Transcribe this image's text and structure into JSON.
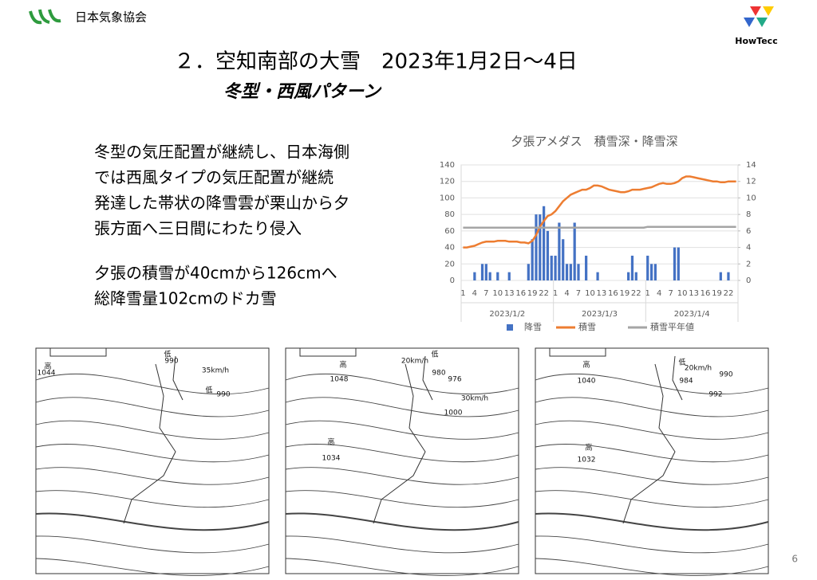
{
  "header": {
    "org": "日本気象協会",
    "logo_right": "HowTecc"
  },
  "title": "２．空知南部の大雪　2023年1月2日～4日",
  "subtitle": "冬型・西風パターン",
  "body": {
    "lines": [
      "冬型の気圧配置が継続し、日本海側",
      "では西風タイプの気圧配置が継続",
      "発達した帯状の降雪雲が栗山から夕",
      "張方面へ三日間にわたり侵入"
    ],
    "lines2": [
      "夕張の積雪が40cmから126cmへ",
      "総降雪量102cmのドカ雪"
    ]
  },
  "chart_data": {
    "type": "combo",
    "title": "夕張アメダス　積雪深・降雪深",
    "categories": [
      1,
      null,
      null,
      4,
      null,
      null,
      7,
      null,
      null,
      10,
      null,
      null,
      13,
      null,
      null,
      16,
      null,
      null,
      19,
      null,
      null,
      22,
      null,
      null,
      1,
      null,
      null,
      4,
      null,
      null,
      7,
      null,
      null,
      10,
      null,
      null,
      13,
      null,
      null,
      16,
      null,
      null,
      19,
      null,
      null,
      22,
      null,
      null,
      1,
      null,
      null,
      4,
      null,
      null,
      7,
      null,
      null,
      10,
      null,
      null,
      13,
      null,
      null,
      16,
      null,
      null,
      19,
      null,
      null,
      22,
      null,
      null
    ],
    "groups": [
      "2023/1/2",
      "2023/1/3",
      "2023/1/4"
    ],
    "ylim": [
      0,
      140
    ],
    "yticks": [
      0,
      20,
      40,
      60,
      80,
      100,
      120,
      140
    ],
    "y2lim": [
      0,
      14
    ],
    "y2ticks": [
      0,
      2,
      4,
      6,
      8,
      10,
      12,
      14
    ],
    "series": [
      {
        "name": "降雪",
        "kind": "bar",
        "axis": "y2",
        "color": "#4472c4",
        "values": [
          0,
          0,
          0,
          1,
          0,
          2,
          2,
          1,
          0,
          1,
          0,
          0,
          1,
          0,
          0,
          0,
          0,
          2,
          5,
          8,
          8,
          9,
          6,
          3,
          3,
          7,
          5,
          2,
          2,
          7,
          2,
          0,
          3,
          0,
          0,
          1,
          0,
          0,
          0,
          0,
          0,
          0,
          0,
          1,
          3,
          1,
          0,
          0,
          3,
          2,
          2,
          0,
          0,
          0,
          0,
          4,
          4,
          0,
          0,
          0,
          0,
          0,
          0,
          0,
          0,
          0,
          0,
          1,
          0,
          1,
          0,
          0
        ]
      },
      {
        "name": "積雪",
        "kind": "line",
        "color": "#ed7d31",
        "values": [
          40,
          40,
          41,
          42,
          44,
          46,
          47,
          47,
          47,
          48,
          48,
          48,
          47,
          47,
          47,
          46,
          46,
          45,
          48,
          55,
          65,
          72,
          78,
          80,
          84,
          90,
          96,
          100,
          104,
          106,
          108,
          110,
          110,
          112,
          115,
          115,
          114,
          112,
          110,
          109,
          108,
          107,
          107,
          108,
          110,
          110,
          110,
          111,
          112,
          113,
          115,
          117,
          118,
          117,
          117,
          118,
          120,
          124,
          126,
          126,
          125,
          124,
          123,
          122,
          121,
          120,
          120,
          119,
          119,
          120,
          120,
          120
        ]
      },
      {
        "name": "積雪平年値",
        "kind": "line",
        "color": "#a5a5a5",
        "values": [
          64,
          64,
          64,
          64,
          64,
          64,
          64,
          64,
          64,
          64,
          64,
          64,
          64,
          64,
          64,
          64,
          64,
          64,
          64,
          64,
          64,
          64,
          64,
          64,
          64,
          64,
          64,
          64,
          64,
          64,
          64,
          64,
          64,
          64,
          64,
          64,
          64,
          64,
          64,
          64,
          64,
          64,
          64,
          64,
          64,
          64,
          64,
          64,
          65,
          65,
          65,
          65,
          65,
          65,
          65,
          65,
          65,
          65,
          65,
          65,
          65,
          65,
          65,
          65,
          65,
          65,
          65,
          65,
          65,
          65,
          65,
          65
        ]
      }
    ]
  },
  "maps": [
    {
      "labels": [
        "低",
        "990",
        "35km/h",
        "低",
        "990",
        "高",
        "1044"
      ]
    },
    {
      "labels": [
        "高",
        "1048",
        "低",
        "980",
        "976",
        "20km/h",
        "30km/h",
        "1000",
        "高",
        "1034"
      ]
    },
    {
      "labels": [
        "高",
        "1040",
        "低",
        "984",
        "990",
        "992",
        "20km/h",
        "高",
        "1032"
      ]
    }
  ],
  "page_number": "6"
}
